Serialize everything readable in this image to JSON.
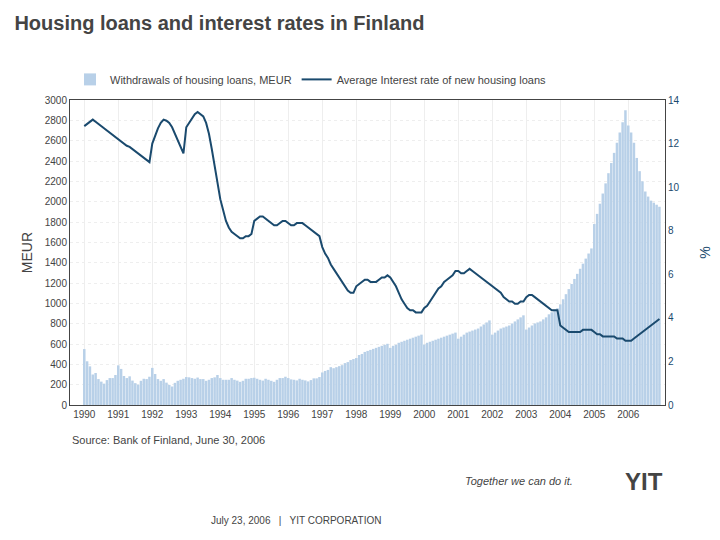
{
  "chart_data": {
    "type": "bar",
    "title": "Housing loans and interest rates in Finland",
    "ylabel": "MEUR",
    "y2label": "%",
    "annotations": [
      "Source: Bank of Finland, June 30, 2006",
      "July 23, 2006   |   YIT CORPORATION",
      "Together we can do it.",
      "YIT"
    ],
    "x": [
      1990,
      1990.0833333333,
      1990.1666666667,
      1990.25,
      1990.3333333333,
      1990.4166666667,
      1990.5,
      1990.5833333333,
      1990.6666666667,
      1990.75,
      1990.8333333333,
      1990.9166666667,
      1991,
      1991.0833333333,
      1991.1666666667,
      1991.25,
      1991.3333333333,
      1991.4166666667,
      1991.5,
      1991.5833333333,
      1991.6666666667,
      1991.75,
      1991.8333333333,
      1991.9166666667,
      1992,
      1992.0833333333,
      1992.1666666667,
      1992.25,
      1992.3333333333,
      1992.4166666667,
      1992.5,
      1992.5833333333,
      1992.6666666667,
      1992.75,
      1992.8333333333,
      1992.9166666667,
      1993,
      1993.0833333333,
      1993.1666666667,
      1993.25,
      1993.3333333333,
      1993.4166666667,
      1993.5,
      1993.5833333333,
      1993.6666666667,
      1993.75,
      1993.8333333333,
      1993.9166666667,
      1994,
      1994.0833333333,
      1994.1666666667,
      1994.25,
      1994.3333333333,
      1994.4166666667,
      1994.5,
      1994.5833333333,
      1994.6666666667,
      1994.75,
      1994.8333333333,
      1994.9166666667,
      1995,
      1995.0833333333,
      1995.1666666667,
      1995.25,
      1995.3333333333,
      1995.4166666667,
      1995.5,
      1995.5833333333,
      1995.6666666667,
      1995.75,
      1995.8333333333,
      1995.9166666667,
      1996,
      1996.0833333333,
      1996.1666666667,
      1996.25,
      1996.3333333333,
      1996.4166666667,
      1996.5,
      1996.5833333333,
      1996.6666666667,
      1996.75,
      1996.8333333333,
      1996.9166666667,
      1997,
      1997.0833333333,
      1997.1666666667,
      1997.25,
      1997.3333333333,
      1997.4166666667,
      1997.5,
      1997.5833333333,
      1997.6666666667,
      1997.75,
      1997.8333333333,
      1997.9166666667,
      1998,
      1998.0833333333,
      1998.1666666667,
      1998.25,
      1998.3333333333,
      1998.4166666667,
      1998.5,
      1998.5833333333,
      1998.6666666667,
      1998.75,
      1998.8333333333,
      1998.9166666667,
      1999,
      1999.0833333333,
      1999.1666666667,
      1999.25,
      1999.3333333333,
      1999.4166666667,
      1999.5,
      1999.5833333333,
      1999.6666666667,
      1999.75,
      1999.8333333333,
      1999.9166666667,
      2000,
      2000.0833333333,
      2000.1666666667,
      2000.25,
      2000.3333333333,
      2000.4166666667,
      2000.5,
      2000.5833333333,
      2000.6666666667,
      2000.75,
      2000.8333333333,
      2000.9166666667,
      2001,
      2001.0833333333,
      2001.1666666667,
      2001.25,
      2001.3333333333,
      2001.4166666667,
      2001.5,
      2001.5833333333,
      2001.6666666667,
      2001.75,
      2001.8333333333,
      2001.9166666667,
      2002,
      2002.0833333333,
      2002.1666666667,
      2002.25,
      2002.3333333333,
      2002.4166666667,
      2002.5,
      2002.5833333333,
      2002.6666666667,
      2002.75,
      2002.8333333333,
      2002.9166666667,
      2003,
      2003.0833333333,
      2003.1666666667,
      2003.25,
      2003.3333333333,
      2003.4166666667,
      2003.5,
      2003.5833333333,
      2003.6666666667,
      2003.75,
      2003.8333333333,
      2003.9166666667,
      2004,
      2004.0833333333,
      2004.1666666667,
      2004.25,
      2004.3333333333,
      2004.4166666667,
      2004.5,
      2004.5833333333,
      2004.6666666667,
      2004.75,
      2004.8333333333,
      2004.9166666667,
      2005,
      2005.0833333333,
      2005.1666666667,
      2005.25,
      2005.3333333333,
      2005.4166666667,
      2005.5,
      2005.5833333333,
      2005.6666666667,
      2005.75,
      2005.8333333333,
      2005.9166666667,
      2006,
      2006.0833333333,
      2006.1666666667,
      2006.25,
      2006.3333333333,
      2006.4166666667,
      2006.5,
      2006.5833333333,
      2006.6666666667,
      2006.75,
      2006.8333333333,
      2006.9166666667
    ],
    "series": [
      {
        "name": "Withdrawals of housing loans, MEUR",
        "type": "bar",
        "color": "#b8d0e8",
        "values": [
          550,
          430,
          380,
          300,
          315,
          255,
          230,
          210,
          245,
          265,
          265,
          295,
          390,
          355,
          285,
          265,
          282,
          240,
          215,
          200,
          238,
          258,
          255,
          278,
          365,
          305,
          255,
          238,
          255,
          220,
          198,
          182,
          218,
          238,
          248,
          258,
          275,
          272,
          265,
          258,
          270,
          255,
          255,
          238,
          248,
          265,
          272,
          295,
          265,
          248,
          248,
          248,
          265,
          248,
          240,
          228,
          238,
          258,
          258,
          265,
          268,
          258,
          248,
          240,
          258,
          248,
          238,
          228,
          248,
          265,
          265,
          278,
          265,
          252,
          248,
          242,
          258,
          248,
          242,
          232,
          245,
          262,
          262,
          275,
          320,
          335,
          345,
          372,
          362,
          372,
          382,
          392,
          412,
          422,
          442,
          452,
          462,
          492,
          502,
          522,
          532,
          542,
          552,
          562,
          572,
          582,
          592,
          602,
          562,
          582,
          592,
          612,
          622,
          632,
          642,
          652,
          662,
          672,
          682,
          692,
          595,
          612,
          622,
          632,
          642,
          652,
          662,
          672,
          682,
          692,
          702,
          712,
          652,
          672,
          692,
          712,
          722,
          732,
          742,
          752,
          772,
          792,
          812,
          832,
          692,
          712,
          732,
          752,
          762,
          772,
          782,
          802,
          822,
          842,
          862,
          882,
          742,
          762,
          782,
          802,
          812,
          822,
          842,
          862,
          892,
          912,
          932,
          952,
          990,
          1040,
          1090,
          1140,
          1190,
          1240,
          1290,
          1340,
          1390,
          1440,
          1490,
          1540,
          1780,
          1880,
          1980,
          2080,
          2180,
          2280,
          2380,
          2480,
          2580,
          2680,
          2780,
          2900,
          2750,
          2680,
          2580,
          2430,
          2300,
          2200,
          2100,
          2050,
          2010,
          1990,
          1970,
          1950
        ]
      },
      {
        "name": "Average Interest rate of new housing loans",
        "type": "line",
        "axis": "y2",
        "color": "#1a4a6e",
        "values": [
          12.8,
          12.9,
          13.0,
          13.1,
          13.0,
          12.9,
          12.8,
          12.7,
          12.6,
          12.5,
          12.4,
          12.3,
          12.2,
          12.1,
          12.0,
          11.9,
          11.85,
          11.75,
          11.65,
          11.55,
          11.45,
          11.35,
          11.25,
          11.15,
          12.0,
          12.4,
          12.7,
          12.95,
          13.1,
          13.05,
          12.95,
          12.75,
          12.45,
          12.15,
          11.85,
          11.55,
          12.75,
          12.95,
          13.15,
          13.35,
          13.45,
          13.35,
          13.25,
          12.95,
          12.45,
          11.75,
          10.95,
          10.15,
          9.45,
          8.95,
          8.45,
          8.15,
          7.95,
          7.85,
          7.75,
          7.65,
          7.65,
          7.75,
          7.75,
          7.85,
          8.45,
          8.55,
          8.65,
          8.65,
          8.55,
          8.45,
          8.35,
          8.25,
          8.25,
          8.35,
          8.45,
          8.45,
          8.35,
          8.25,
          8.25,
          8.35,
          8.35,
          8.35,
          8.25,
          8.15,
          8.05,
          7.95,
          7.85,
          7.75,
          7.25,
          6.95,
          6.75,
          6.45,
          6.25,
          6.05,
          5.85,
          5.65,
          5.45,
          5.25,
          5.15,
          5.15,
          5.45,
          5.55,
          5.65,
          5.75,
          5.75,
          5.65,
          5.65,
          5.65,
          5.75,
          5.85,
          5.85,
          5.95,
          5.85,
          5.65,
          5.45,
          5.15,
          4.85,
          4.65,
          4.45,
          4.35,
          4.35,
          4.25,
          4.25,
          4.25,
          4.45,
          4.55,
          4.75,
          4.95,
          5.15,
          5.35,
          5.45,
          5.65,
          5.75,
          5.85,
          5.95,
          6.15,
          6.15,
          6.05,
          6.05,
          6.15,
          6.25,
          6.15,
          6.05,
          5.95,
          5.85,
          5.75,
          5.65,
          5.55,
          5.45,
          5.35,
          5.25,
          5.15,
          4.95,
          4.85,
          4.75,
          4.75,
          4.65,
          4.65,
          4.75,
          4.75,
          4.95,
          5.05,
          5.05,
          4.95,
          4.85,
          4.75,
          4.65,
          4.55,
          4.45,
          4.35,
          4.35,
          4.35,
          3.65,
          3.55,
          3.45,
          3.35,
          3.35,
          3.35,
          3.35,
          3.35,
          3.45,
          3.45,
          3.45,
          3.45,
          3.35,
          3.25,
          3.25,
          3.15,
          3.15,
          3.15,
          3.15,
          3.15,
          3.05,
          3.05,
          3.05,
          2.95,
          2.95,
          2.95,
          3.05,
          3.15,
          3.25,
          3.35,
          3.45,
          3.55,
          3.65,
          3.75,
          3.85,
          3.95
        ]
      }
    ],
    "xlim": [
      1989.58,
      2007.08
    ],
    "xticks": [
      1990,
      1991,
      1992,
      1993,
      1994,
      1995,
      1996,
      1997,
      1998,
      1999,
      2000,
      2001,
      2002,
      2003,
      2004,
      2005,
      2006
    ],
    "ylim": [
      0,
      3000
    ],
    "yticks": [
      0,
      200,
      400,
      600,
      800,
      1000,
      1200,
      1400,
      1600,
      1800,
      2000,
      2200,
      2400,
      2600,
      2800,
      3000
    ],
    "y2lim": [
      0,
      14
    ],
    "y2ticks": [
      0,
      2,
      4,
      6,
      8,
      10,
      12,
      14
    ],
    "grid": true,
    "legend": "top left"
  }
}
